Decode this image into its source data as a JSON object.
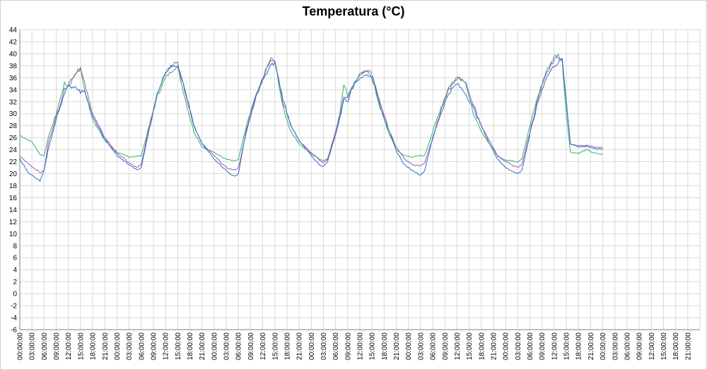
{
  "chart_data": {
    "type": "line",
    "title": "Temperatura (°C)",
    "xlabel": "",
    "ylabel": "",
    "ylim": [
      -6,
      44
    ],
    "y_step": 2,
    "grid": true,
    "legend": "none",
    "x_tick_labels": [
      "00:00:00",
      "03:00:00",
      "06:00:00",
      "09:00:00",
      "12:00:00",
      "15:00:00",
      "18:00:00",
      "21:00:00",
      "00:00:00",
      "03:00:00",
      "06:00:00",
      "09:00:00",
      "12:00:00",
      "15:00:00",
      "18:00:00",
      "21:00:00",
      "00:00:00",
      "03:00:00",
      "06:00:00",
      "09:00:00",
      "12:00:00",
      "15:00:00",
      "18:00:00",
      "21:00:00",
      "00:00:00",
      "03:00:00",
      "06:00:00",
      "09:00:00",
      "12:00:00",
      "15:00:00",
      "18:00:00",
      "21:00:00",
      "00:00:00",
      "03:00:00",
      "06:00:00",
      "09:00:00",
      "12:00:00",
      "15:00:00",
      "18:00:00",
      "21:00:00",
      "00:00:00",
      "03:00:00",
      "06:00:00",
      "09:00:00",
      "12:00:00",
      "15:00:00",
      "18:00:00",
      "21:00:00",
      "00:00:00",
      "03:00:00",
      "06:00:00",
      "09:00:00",
      "12:00:00",
      "15:00:00",
      "18:00:00",
      "21:00:00"
    ],
    "x_hours_per_tick": 3,
    "x_total_hours": 168,
    "series": [
      {
        "name": "green",
        "color": "#33b36b",
        "points": [
          [
            0,
            26.4
          ],
          [
            3,
            25.3
          ],
          [
            5,
            23.2
          ],
          [
            6,
            23.0
          ],
          [
            7,
            26.0
          ],
          [
            9,
            30.0
          ],
          [
            11,
            35.0
          ],
          [
            12,
            34.5
          ],
          [
            14,
            37.0
          ],
          [
            15,
            37.6
          ],
          [
            16,
            34.0
          ],
          [
            18,
            29.0
          ],
          [
            21,
            25.5
          ],
          [
            24,
            23.5
          ],
          [
            27,
            22.8
          ],
          [
            29,
            22.9
          ],
          [
            30,
            23.0
          ],
          [
            32,
            28.0
          ],
          [
            34,
            33.0
          ],
          [
            36,
            36.0
          ],
          [
            38,
            37.5
          ],
          [
            39,
            37.8
          ],
          [
            41,
            32.0
          ],
          [
            43,
            27.0
          ],
          [
            45,
            24.5
          ],
          [
            48,
            23.5
          ],
          [
            51,
            22.5
          ],
          [
            53,
            22.1
          ],
          [
            54,
            22.4
          ],
          [
            56,
            28.0
          ],
          [
            58,
            32.0
          ],
          [
            60,
            36.0
          ],
          [
            62,
            39.2
          ],
          [
            63,
            38.8
          ],
          [
            65,
            31.0
          ],
          [
            67,
            27.0
          ],
          [
            69,
            25.0
          ],
          [
            72,
            23.3
          ],
          [
            74,
            22.5
          ],
          [
            75,
            22.2
          ],
          [
            76,
            22.5
          ],
          [
            78,
            27.0
          ],
          [
            79,
            30.0
          ],
          [
            80,
            35.0
          ],
          [
            81,
            33.0
          ],
          [
            82,
            34.5
          ],
          [
            84,
            36.5
          ],
          [
            86,
            37.2
          ],
          [
            87,
            36.0
          ],
          [
            89,
            31.0
          ],
          [
            91,
            27.0
          ],
          [
            93,
            24.0
          ],
          [
            95,
            23.0
          ],
          [
            97,
            22.8
          ],
          [
            99,
            23.0
          ],
          [
            100,
            23.0
          ],
          [
            102,
            27.0
          ],
          [
            104,
            31.0
          ],
          [
            106,
            34.5
          ],
          [
            108,
            36.0
          ],
          [
            110,
            35.5
          ],
          [
            112,
            30.0
          ],
          [
            114,
            27.0
          ],
          [
            116,
            25.0
          ],
          [
            118,
            23.0
          ],
          [
            120,
            22.3
          ],
          [
            123,
            22.0
          ],
          [
            124,
            22.5
          ],
          [
            126,
            28.0
          ],
          [
            128,
            33.0
          ],
          [
            130,
            37.0
          ],
          [
            132,
            39.5
          ],
          [
            133,
            39.8
          ],
          [
            134,
            38.5
          ],
          [
            135,
            30.0
          ],
          [
            136,
            23.6
          ],
          [
            138,
            23.4
          ],
          [
            140,
            24.0
          ],
          [
            142,
            23.4
          ],
          [
            144,
            23.2
          ]
        ]
      },
      {
        "name": "purple",
        "color": "#9b59b6",
        "points": [
          [
            0,
            22.9
          ],
          [
            3,
            21.2
          ],
          [
            5,
            20.2
          ],
          [
            6,
            20.5
          ],
          [
            7,
            25.0
          ],
          [
            9,
            29.5
          ],
          [
            11,
            34.0
          ],
          [
            12,
            35.0
          ],
          [
            14,
            37.0
          ],
          [
            15,
            37.5
          ],
          [
            16,
            35.0
          ],
          [
            18,
            30.0
          ],
          [
            21,
            26.0
          ],
          [
            24,
            23.5
          ],
          [
            27,
            21.8
          ],
          [
            29,
            21.0
          ],
          [
            30,
            21.5
          ],
          [
            32,
            28.0
          ],
          [
            34,
            33.5
          ],
          [
            36,
            37.0
          ],
          [
            38,
            38.5
          ],
          [
            39,
            38.6
          ],
          [
            41,
            33.0
          ],
          [
            43,
            28.0
          ],
          [
            45,
            25.0
          ],
          [
            48,
            23.0
          ],
          [
            51,
            21.0
          ],
          [
            53,
            20.6
          ],
          [
            54,
            21.0
          ],
          [
            56,
            27.0
          ],
          [
            58,
            32.0
          ],
          [
            60,
            36.0
          ],
          [
            62,
            38.8
          ],
          [
            63,
            39.0
          ],
          [
            65,
            32.0
          ],
          [
            67,
            28.0
          ],
          [
            69,
            25.5
          ],
          [
            72,
            23.5
          ],
          [
            74,
            22.3
          ],
          [
            75,
            21.8
          ],
          [
            76,
            22.3
          ],
          [
            78,
            27.0
          ],
          [
            79,
            29.5
          ],
          [
            80,
            33.0
          ],
          [
            81,
            32.5
          ],
          [
            82,
            34.0
          ],
          [
            84,
            36.5
          ],
          [
            86,
            37.3
          ],
          [
            87,
            36.5
          ],
          [
            89,
            32.0
          ],
          [
            91,
            27.5
          ],
          [
            93,
            24.5
          ],
          [
            95,
            22.5
          ],
          [
            97,
            21.5
          ],
          [
            99,
            21.3
          ],
          [
            100,
            21.8
          ],
          [
            102,
            26.0
          ],
          [
            104,
            30.5
          ],
          [
            106,
            34.0
          ],
          [
            108,
            36.0
          ],
          [
            110,
            35.5
          ],
          [
            112,
            31.5
          ],
          [
            114,
            28.0
          ],
          [
            116,
            25.5
          ],
          [
            118,
            23.0
          ],
          [
            120,
            22.0
          ],
          [
            123,
            21.0
          ],
          [
            124,
            21.5
          ],
          [
            126,
            27.0
          ],
          [
            128,
            32.5
          ],
          [
            130,
            36.5
          ],
          [
            132,
            39.0
          ],
          [
            133,
            39.5
          ],
          [
            134,
            39.0
          ],
          [
            135,
            32.0
          ],
          [
            136,
            25.0
          ],
          [
            138,
            24.7
          ],
          [
            140,
            24.7
          ],
          [
            142,
            24.4
          ],
          [
            144,
            24.3
          ]
        ]
      },
      {
        "name": "blue",
        "color": "#2f6fc4",
        "points": [
          [
            0,
            22.5
          ],
          [
            2,
            20.3
          ],
          [
            4,
            19.2
          ],
          [
            5,
            18.8
          ],
          [
            6,
            20.5
          ],
          [
            7,
            24.0
          ],
          [
            9,
            29.0
          ],
          [
            11,
            33.5
          ],
          [
            12,
            34.5
          ],
          [
            14,
            34.5
          ],
          [
            15,
            33.5
          ],
          [
            16,
            34.0
          ],
          [
            18,
            29.5
          ],
          [
            21,
            25.8
          ],
          [
            24,
            23.0
          ],
          [
            27,
            21.5
          ],
          [
            29,
            20.6
          ],
          [
            30,
            21.0
          ],
          [
            32,
            27.5
          ],
          [
            34,
            33.5
          ],
          [
            36,
            37.0
          ],
          [
            38,
            38.2
          ],
          [
            39,
            38.0
          ],
          [
            41,
            33.5
          ],
          [
            43,
            28.0
          ],
          [
            45,
            25.0
          ],
          [
            48,
            22.5
          ],
          [
            51,
            20.5
          ],
          [
            53,
            19.5
          ],
          [
            54,
            20.0
          ],
          [
            56,
            27.5
          ],
          [
            58,
            32.5
          ],
          [
            60,
            35.5
          ],
          [
            62,
            38.0
          ],
          [
            63,
            38.5
          ],
          [
            65,
            32.5
          ],
          [
            67,
            28.0
          ],
          [
            69,
            25.5
          ],
          [
            72,
            23.0
          ],
          [
            74,
            21.5
          ],
          [
            75,
            21.2
          ],
          [
            76,
            22.0
          ],
          [
            78,
            26.5
          ],
          [
            79,
            29.0
          ],
          [
            80,
            32.5
          ],
          [
            81,
            32.0
          ],
          [
            82,
            34.5
          ],
          [
            84,
            36.0
          ],
          [
            86,
            36.5
          ],
          [
            87,
            36.0
          ],
          [
            89,
            31.5
          ],
          [
            91,
            27.5
          ],
          [
            93,
            23.8
          ],
          [
            95,
            21.5
          ],
          [
            97,
            20.5
          ],
          [
            99,
            19.8
          ],
          [
            100,
            20.5
          ],
          [
            102,
            26.0
          ],
          [
            104,
            30.0
          ],
          [
            106,
            33.5
          ],
          [
            108,
            35.0
          ],
          [
            110,
            33.5
          ],
          [
            112,
            31.0
          ],
          [
            114,
            28.0
          ],
          [
            116,
            25.0
          ],
          [
            118,
            22.5
          ],
          [
            120,
            21.0
          ],
          [
            123,
            20.0
          ],
          [
            124,
            20.5
          ],
          [
            126,
            26.5
          ],
          [
            128,
            32.0
          ],
          [
            130,
            36.0
          ],
          [
            132,
            38.0
          ],
          [
            133,
            38.5
          ],
          [
            134,
            39.0
          ],
          [
            135,
            32.0
          ],
          [
            136,
            25.0
          ],
          [
            138,
            24.5
          ],
          [
            140,
            24.5
          ],
          [
            142,
            24.2
          ],
          [
            144,
            24.1
          ]
        ]
      }
    ]
  }
}
